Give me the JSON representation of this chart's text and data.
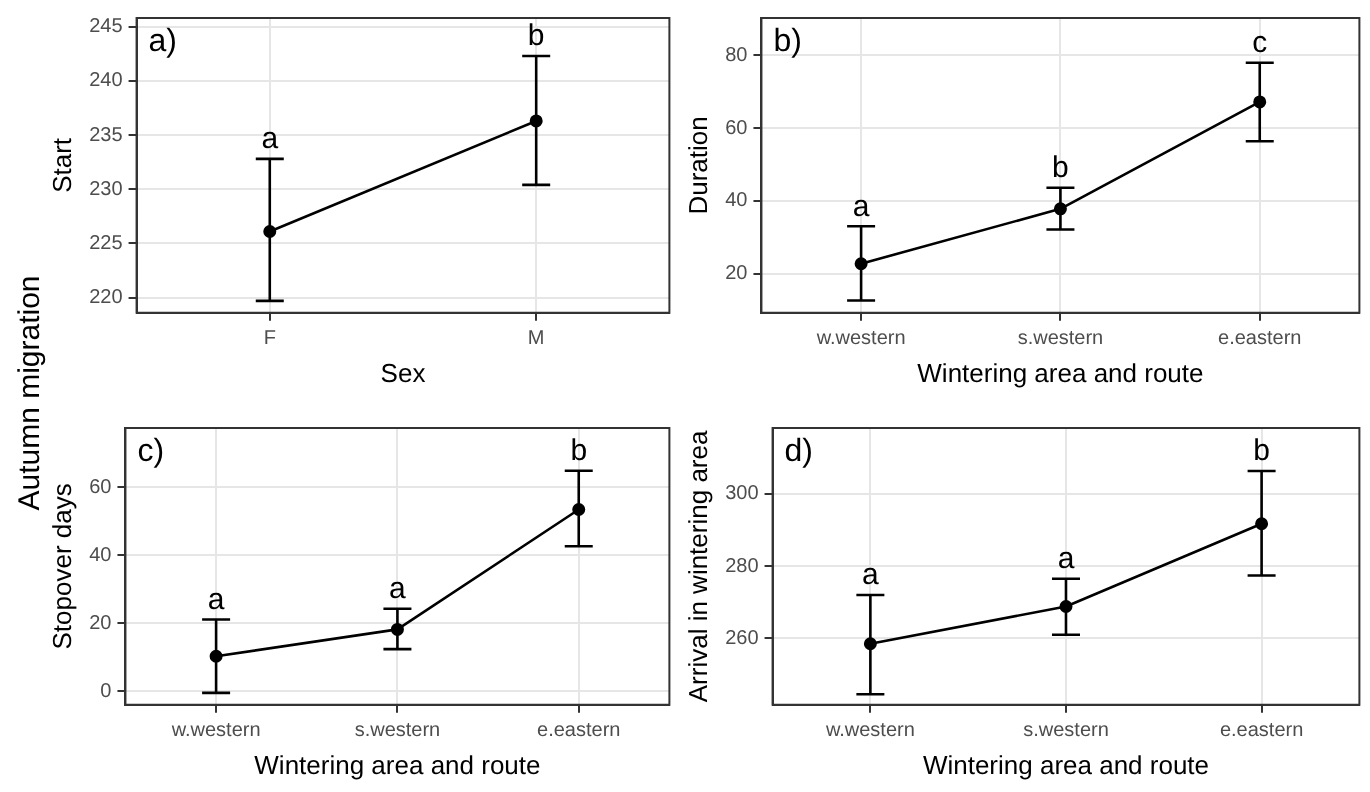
{
  "chart_data": [
    {
      "type": "line",
      "xlabel": "Sex",
      "ylabel": "Start",
      "categories": [
        "F",
        "M"
      ],
      "series": [
        {
          "color": "#000000",
          "values": [
            226.1,
            236.3
          ],
          "errors": [
            [
              219.7,
              232.8
            ],
            [
              230.4,
              242.3
            ]
          ]
        }
      ],
      "ylim": [
        218.6,
        245.8
      ],
      "yticks": [
        220,
        225,
        230,
        235,
        240,
        245
      ],
      "grid": true,
      "legend": false,
      "marker": "circle",
      "line_style": "solid",
      "annotations": [
        "a)",
        "Autumn migration",
        {
          "text": "a",
          "x": "F",
          "y": 232.8
        },
        {
          "text": "b",
          "x": "M",
          "y": 242.3
        }
      ]
    },
    {
      "type": "line",
      "xlabel": "Wintering area and route",
      "ylabel": "Duration",
      "categories": [
        "w.western",
        "s.western",
        "e.eastern"
      ],
      "series": [
        {
          "color": "#000000",
          "values": [
            22.7,
            37.8,
            67.2
          ],
          "errors": [
            [
              12.6,
              33
            ],
            [
              32.1,
              43.6
            ],
            [
              56.4,
              78
            ]
          ]
        }
      ],
      "ylim": [
        9.2,
        90.3
      ],
      "yticks": [
        20,
        40,
        60,
        80
      ],
      "grid": true,
      "legend": false,
      "marker": "circle",
      "line_style": "solid",
      "annotations": [
        "b)",
        {
          "text": "a",
          "x": "w.western",
          "y": 33
        },
        {
          "text": "b",
          "x": "s.western",
          "y": 43.6
        },
        {
          "text": "c",
          "x": "e.eastern",
          "y": 78
        }
      ]
    },
    {
      "type": "line",
      "xlabel": "Wintering area and route",
      "ylabel": "Stopover days",
      "categories": [
        "w.western",
        "s.western",
        "e.eastern"
      ],
      "series": [
        {
          "color": "#000000",
          "values": [
            10.3,
            18.2,
            53.5
          ],
          "errors": [
            [
              -0.5,
              21.1
            ],
            [
              12.4,
              24.3
            ],
            [
              42.7,
              64.9
            ]
          ]
        }
      ],
      "ylim": [
        -4,
        77.5
      ],
      "yticks": [
        0,
        20,
        40,
        60
      ],
      "grid": true,
      "legend": false,
      "marker": "circle",
      "line_style": "solid",
      "annotations": [
        "c)",
        {
          "text": "a",
          "x": "w.western",
          "y": 21.1
        },
        {
          "text": "a",
          "x": "s.western",
          "y": 24.3
        },
        {
          "text": "b",
          "x": "e.eastern",
          "y": 64.9
        }
      ]
    },
    {
      "type": "line",
      "xlabel": "Wintering area and route",
      "ylabel": "Arrival in wintering area",
      "categories": [
        "w.western",
        "s.western",
        "e.eastern"
      ],
      "series": [
        {
          "color": "#000000",
          "values": [
            258.5,
            268.8,
            291.7
          ],
          "errors": [
            [
              244.5,
              272
            ],
            [
              261,
              276.5
            ],
            [
              277.4,
              306.3
            ]
          ]
        }
      ],
      "ylim": [
        241.6,
        318.2
      ],
      "yticks": [
        260,
        280,
        300
      ],
      "grid": true,
      "legend": false,
      "marker": "circle",
      "line_style": "solid",
      "annotations": [
        "d)",
        {
          "text": "a",
          "x": "w.western",
          "y": 272
        },
        {
          "text": "a",
          "x": "s.western",
          "y": 276.5
        },
        {
          "text": "b",
          "x": "e.eastern",
          "y": 306.3
        }
      ]
    }
  ]
}
